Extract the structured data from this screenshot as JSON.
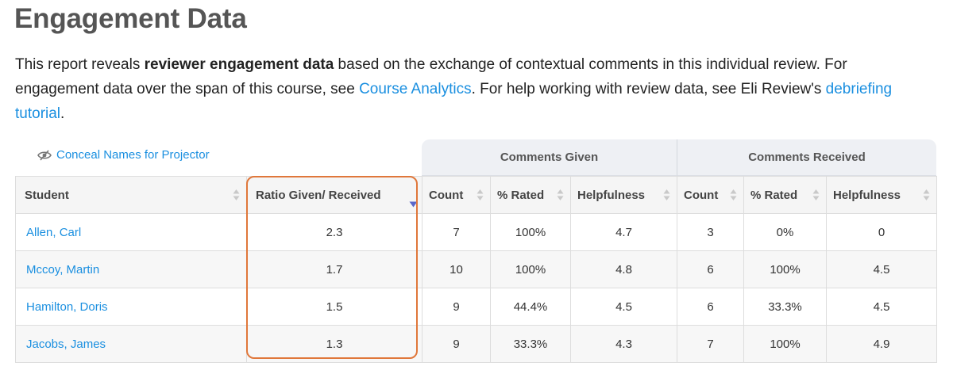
{
  "title": "Engagement Data",
  "intro": {
    "p1": "This report reveals ",
    "bold": "reviewer engagement data",
    "p2": " based on the exchange of contextual comments in this individual review. For engagement data over the span of this course, see ",
    "link1": "Course Analytics",
    "p3": ". For help working with review data, see Eli Review's ",
    "link2": "debriefing tutorial",
    "p4": "."
  },
  "conceal_label": "Conceal Names for Projector",
  "groups": {
    "given": "Comments Given",
    "received": "Comments Received"
  },
  "columns": {
    "student": "Student",
    "ratio": "Ratio Given/ Received",
    "count1": "Count",
    "rated1": "% Rated",
    "help1": "Helpfulness",
    "count2": "Count",
    "rated2": "% Rated",
    "help2": "Helpfulness"
  },
  "rows": [
    {
      "name": "Allen, Carl",
      "ratio": "2.3",
      "given_count": "7",
      "given_rated": "100%",
      "given_help": "4.7",
      "recv_count": "3",
      "recv_rated": "0%",
      "recv_help": "0"
    },
    {
      "name": "Mccoy, Martin",
      "ratio": "1.7",
      "given_count": "10",
      "given_rated": "100%",
      "given_help": "4.8",
      "recv_count": "6",
      "recv_rated": "100%",
      "recv_help": "4.5"
    },
    {
      "name": "Hamilton, Doris",
      "ratio": "1.5",
      "given_count": "9",
      "given_rated": "44.4%",
      "given_help": "4.5",
      "recv_count": "6",
      "recv_rated": "33.3%",
      "recv_help": "4.5"
    },
    {
      "name": "Jacobs, James",
      "ratio": "1.3",
      "given_count": "9",
      "given_rated": "33.3%",
      "given_help": "4.3",
      "recv_count": "7",
      "recv_rated": "100%",
      "recv_help": "4.9"
    }
  ],
  "colors": {
    "link": "#1a8fe0",
    "highlight": "#e0773a",
    "sort_active": "#5a67c9"
  }
}
